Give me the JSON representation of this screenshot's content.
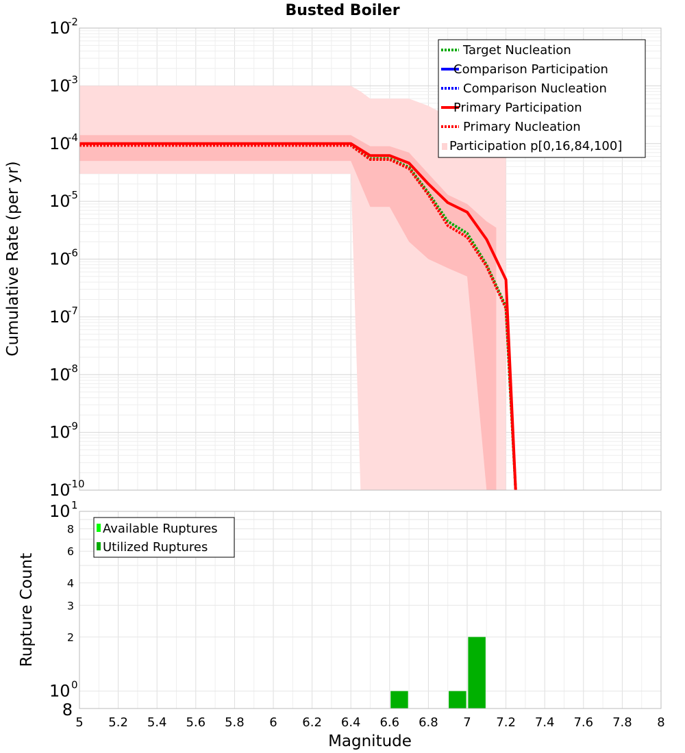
{
  "chart_data": [
    {
      "type": "line",
      "title": "Busted Boiler",
      "xlabel": "",
      "ylabel": "Cumulative Rate (per yr)",
      "xlim": [
        5,
        8
      ],
      "ylim": [
        1e-10,
        0.01
      ],
      "yscale": "log",
      "y_tick_labels": [
        {
          "base": "10",
          "exp": "-2"
        },
        {
          "base": "10",
          "exp": "-3"
        },
        {
          "base": "10",
          "exp": "-4"
        },
        {
          "base": "10",
          "exp": "-5"
        },
        {
          "base": "10",
          "exp": "-6"
        },
        {
          "base": "10",
          "exp": "-7"
        },
        {
          "base": "10",
          "exp": "-8"
        },
        {
          "base": "10",
          "exp": "-9"
        },
        {
          "base": "10",
          "exp": "-10"
        }
      ],
      "legend_position": "top-right",
      "legend": [
        {
          "label": "Target Nucleation",
          "color": "#00aa00",
          "style": "dotted"
        },
        {
          "label": "Comparison Participation",
          "color": "#0000ff",
          "style": "solid"
        },
        {
          "label": "Comparison Nucleation",
          "color": "#0000ff",
          "style": "dotted"
        },
        {
          "label": "Primary Participation",
          "color": "#ff0000",
          "style": "solid"
        },
        {
          "label": "Primary Nucleation",
          "color": "#ff0000",
          "style": "dotted"
        },
        {
          "label": "Participation p[0,16,84,100]",
          "color": "#ffd5d5",
          "style": "band"
        }
      ],
      "bands": [
        {
          "name": "p0-p100",
          "color": "#ffdcdc",
          "x": [
            5.0,
            6.4,
            6.45,
            6.5,
            6.6,
            6.7,
            6.8,
            6.9,
            7.0,
            7.1,
            7.15,
            7.2
          ],
          "upper": [
            0.001,
            0.001,
            0.0008,
            0.0006,
            0.0006,
            0.0006,
            0.00045,
            0.0003,
            0.00028,
            0.00028,
            0.00028,
            0.00028
          ],
          "lower": [
            3e-05,
            3e-05,
            1e-10,
            1e-10,
            1e-10,
            1e-10,
            1e-10,
            1e-10,
            1e-10,
            1e-10,
            1e-10,
            1e-10
          ]
        },
        {
          "name": "p16-p84",
          "color": "#ffbcbc",
          "x": [
            5.0,
            6.4,
            6.5,
            6.6,
            6.7,
            6.8,
            6.9,
            7.0,
            7.1,
            7.15
          ],
          "upper": [
            0.00014,
            0.00014,
            9e-05,
            9e-05,
            7e-05,
            3e-05,
            1.3e-05,
            9e-06,
            4.5e-06,
            3.5e-06
          ],
          "lower": [
            5e-05,
            5e-05,
            8e-06,
            8e-06,
            2e-06,
            1e-06,
            7e-07,
            5e-07,
            1e-10,
            1e-10
          ]
        }
      ],
      "series": [
        {
          "name": "Target Nucleation",
          "color": "#00aa00",
          "style": "dotted",
          "x": [
            5.0,
            6.4,
            6.5,
            6.6,
            6.7,
            6.8,
            6.9,
            7.0,
            7.1,
            7.2,
            7.25
          ],
          "values": [
            9.5e-05,
            9.5e-05,
            5.5e-05,
            5.5e-05,
            3.9e-05,
            1.4e-05,
            4.5e-06,
            2.8e-06,
            8e-07,
            1.5e-07,
            1e-10
          ]
        },
        {
          "name": "Primary Participation",
          "color": "#ff0000",
          "style": "solid",
          "x": [
            5.0,
            6.4,
            6.5,
            6.6,
            6.7,
            6.8,
            6.9,
            7.0,
            7.1,
            7.2,
            7.25
          ],
          "values": [
            0.0001,
            0.0001,
            6.2e-05,
            6.2e-05,
            4.6e-05,
            2e-05,
            9.5e-06,
            6.5e-06,
            2.2e-06,
            4.4e-07,
            1e-10
          ]
        },
        {
          "name": "Primary Nucleation",
          "color": "#ff0000",
          "style": "dotted",
          "x": [
            5.0,
            6.4,
            6.5,
            6.6,
            6.7,
            6.8,
            6.9,
            7.0,
            7.1,
            7.2,
            7.25
          ],
          "values": [
            9.3e-05,
            9.3e-05,
            5.3e-05,
            5.3e-05,
            3.7e-05,
            1.3e-05,
            3.8e-06,
            2.4e-06,
            7.5e-07,
            1.4e-07,
            1e-10
          ]
        }
      ]
    },
    {
      "type": "bar",
      "xlabel": "Magnitude",
      "ylabel": "Rupture Count",
      "xlim": [
        5,
        8
      ],
      "ylim": [
        0.8,
        10
      ],
      "yscale": "log",
      "x_ticks": [
        "5",
        "5.2",
        "5.4",
        "5.6",
        "5.8",
        "6",
        "6.2",
        "6.4",
        "6.6",
        "6.8",
        "7",
        "7.2",
        "7.4",
        "7.6",
        "7.8",
        "8"
      ],
      "y_tick_labels": [
        {
          "base": "10",
          "exp": "1"
        },
        {
          "base": "8",
          "exp": ""
        },
        {
          "base": "6",
          "exp": ""
        },
        {
          "base": "4",
          "exp": ""
        },
        {
          "base": "3",
          "exp": ""
        },
        {
          "base": "2",
          "exp": ""
        },
        {
          "base": "10",
          "exp": "0"
        },
        {
          "base": "8",
          "exp": ""
        }
      ],
      "legend_position": "top-left",
      "legend": [
        {
          "label": "Available Ruptures",
          "color": "#00ff00"
        },
        {
          "label": "Utilized Ruptures",
          "color": "#00aa00"
        }
      ],
      "series": [
        {
          "name": "Utilized Ruptures",
          "color": "#00b000",
          "bar_width": 0.09,
          "x": [
            6.65,
            6.95,
            7.05
          ],
          "values": [
            1,
            1,
            2
          ]
        }
      ]
    }
  ]
}
